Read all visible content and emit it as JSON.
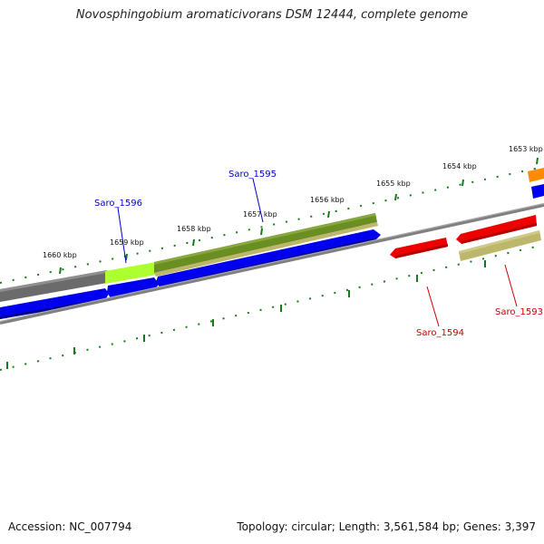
{
  "title": "Novosphingobium aromaticivorans DSM 12444, complete genome",
  "footer": {
    "accession": "Accession: NC_007794",
    "summary": "Topology: circular; Length: 3,561,584 bp; Genes: 3,397"
  },
  "scale_labels": [
    "1653 kbp",
    "1654 kbp",
    "1655 kbp",
    "1656 kbp",
    "1657 kbp",
    "1658 kbp",
    "1659 kbp",
    "1660 kbp"
  ],
  "gene_labels": {
    "forward": [
      "Saro_1595",
      "Saro_1596"
    ],
    "reverse": [
      "Saro_1594",
      "Saro_1593"
    ]
  },
  "colors": {
    "forward_label": "#0000cc",
    "reverse_label": "#cc0000",
    "cds_blue": "#0000ee",
    "cds_red": "#ee0000",
    "feature_olive": "#6b8e23",
    "feature_lime": "#adff2f",
    "feature_gray": "#6b6b6b",
    "feature_khaki": "#bdb76b",
    "feature_orange": "#ff8c00",
    "tick_green": "#1a7a1a",
    "backbone": "#808080"
  }
}
